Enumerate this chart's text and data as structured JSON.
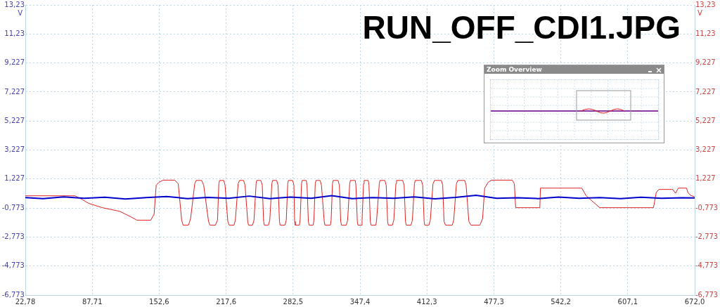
{
  "chart_data": {
    "type": "line",
    "title": "RUN_OFF_CDI1.JPG",
    "ylabel": "V",
    "y2label": "V",
    "annotations": [
      "Zoom Overview"
    ],
    "xlim": [
      22.78,
      672
    ],
    "xticks": [
      {
        "value": 22.78,
        "label": "22,78"
      },
      {
        "value": 87.71,
        "label": "87,71"
      },
      {
        "value": 152.6,
        "label": "152,6"
      },
      {
        "value": 217.6,
        "label": "217,6"
      },
      {
        "value": 282.5,
        "label": "282,5"
      },
      {
        "value": 347.4,
        "label": "347,4"
      },
      {
        "value": 412.3,
        "label": "412,3"
      },
      {
        "value": 477.3,
        "label": "477,3"
      },
      {
        "value": 542.2,
        "label": "542,2"
      },
      {
        "value": 607.1,
        "label": "607,1"
      },
      {
        "value": 672,
        "label": "672,0"
      }
    ],
    "ylim": [
      -6.773,
      13.23
    ],
    "yticks": [
      {
        "value": -6.773,
        "label": "-6,773"
      },
      {
        "value": -4.773,
        "label": "-4,773"
      },
      {
        "value": -2.773,
        "label": "-2,773"
      },
      {
        "value": -0.773,
        "label": "-0,773"
      },
      {
        "value": 1.227,
        "label": "1,227"
      },
      {
        "value": 3.227,
        "label": "3,227"
      },
      {
        "value": 5.227,
        "label": "5,227"
      },
      {
        "value": 7.227,
        "label": "7,227"
      },
      {
        "value": 9.227,
        "label": "9,227"
      },
      {
        "value": 11.23,
        "label": "11,23"
      },
      {
        "value": 13.23,
        "label": "13,23"
      }
    ],
    "y2lim": [
      -6.773,
      13.23
    ],
    "y2ticks": [
      {
        "value": -6.773,
        "label": "-6,773"
      },
      {
        "value": -4.773,
        "label": "-4,773"
      },
      {
        "value": -2.773,
        "label": "-2,773"
      },
      {
        "value": -0.773,
        "label": "-0,773"
      },
      {
        "value": 1.227,
        "label": "1,227"
      },
      {
        "value": 3.227,
        "label": "3,227"
      },
      {
        "value": 5.227,
        "label": "5,227"
      },
      {
        "value": 7.227,
        "label": "7,227"
      },
      {
        "value": 9.227,
        "label": "9,227"
      },
      {
        "value": 11.23,
        "label": "11,23"
      },
      {
        "value": 13.23,
        "label": "13,23"
      }
    ],
    "grid": true,
    "legend": false,
    "marker": "none",
    "line_style": "solid",
    "series": [
      {
        "color": "#0000cc",
        "x": [
          22.8,
          40,
          60,
          80,
          100,
          120,
          140,
          160,
          180,
          200,
          220,
          240,
          260,
          280,
          300,
          320,
          340,
          360,
          380,
          400,
          420,
          440,
          460,
          480,
          500,
          520,
          540,
          560,
          580,
          600,
          620,
          640,
          660,
          672
        ],
        "values": [
          -0.05,
          -0.12,
          0.0,
          -0.1,
          -0.03,
          -0.15,
          -0.05,
          0.02,
          -0.12,
          -0.04,
          -0.1,
          0.05,
          -0.13,
          -0.02,
          -0.1,
          0.08,
          -0.12,
          -0.05,
          -0.1,
          0.0,
          -0.14,
          -0.04,
          0.1,
          -0.1,
          -0.06,
          -0.12,
          -0.02,
          -0.1,
          -0.05,
          -0.13,
          -0.03,
          -0.1,
          -0.06,
          -0.08
        ]
      },
      {
        "color": "#dd2222",
        "axis": "y2",
        "x": [
          22.8,
          70.9,
          77.6,
          84.2,
          97.6,
          114.3,
          125.7,
          131.0,
          144.4,
          147.7,
          149.7,
          152.4,
          156.4,
          167.7,
          171.1,
          174.4,
          175.8,
          181.1,
          183.1,
          187.1,
          188.5,
          193.8,
          195.8,
          200.5,
          201.8,
          207.2,
          209.2,
          210.5,
          211.2,
          215.2,
          216.5,
          219.2,
          220.5,
          225.2,
          226.5,
          229.2,
          230.5,
          234.5,
          235.9,
          238.5,
          239.2,
          243.2,
          244.6,
          246.6,
          247.2,
          251.2,
          252.6,
          253.9,
          254.6,
          258.6,
          259.9,
          261.9,
          262.6,
          266.6,
          267.9,
          269.3,
          269.9,
          274.6,
          275.9,
          277.3,
          278.0,
          282.0,
          283.3,
          284.0,
          284.6,
          288.6,
          289.3,
          290.7,
          291.3,
          295.3,
          296.0,
          297.3,
          298.0,
          302.0,
          302.7,
          304.0,
          304.7,
          308.7,
          310.0,
          312.7,
          313.4,
          318.7,
          319.4,
          320.7,
          321.4,
          326.1,
          327.4,
          328.7,
          329.4,
          334.1,
          335.4,
          337.4,
          338.1,
          342.8,
          343.4,
          344.8,
          345.4,
          348.8,
          349.4,
          350.8,
          351.4,
          355.4,
          356.1,
          357.4,
          358.1,
          362.8,
          363.5,
          366.1,
          366.8,
          371.5,
          372.8,
          374.2,
          374.8,
          378.8,
          380.2,
          382.2,
          382.8,
          388.8,
          390.2,
          391.5,
          392.2,
          396.9,
          398.2,
          400.2,
          400.9,
          406.9,
          408.2,
          409.6,
          410.2,
          414.2,
          415.6,
          418.2,
          419.6,
          426.3,
          427.6,
          428.9,
          430.3,
          436.9,
          438.3,
          440.9,
          442.3,
          449.0,
          450.3,
          453.0,
          455.0,
          463.7,
          466.3,
          468.3,
          471.7,
          475.0,
          495.1,
          497.1,
          498.4,
          521.8,
          522.4,
          562.5,
          566.5,
          570.5,
          575.9,
          579.9,
          632.0,
          634.7,
          637.3,
          650.7,
          653.4,
          656.1,
          664.1,
          665.4,
          668.1,
          672.0
        ],
        "values": [
          0.07,
          0.07,
          -0.17,
          -0.45,
          -0.75,
          -1.0,
          -1.4,
          -1.61,
          -1.61,
          -1.2,
          0.8,
          1.0,
          1.15,
          1.15,
          0.9,
          -1.6,
          -1.95,
          -1.95,
          -1.5,
          0.9,
          1.13,
          1.13,
          0.8,
          -1.7,
          -1.95,
          -1.95,
          -1.6,
          0.9,
          1.13,
          1.13,
          0.8,
          -1.7,
          -1.95,
          -1.95,
          -1.6,
          0.9,
          1.13,
          1.13,
          0.8,
          -1.7,
          -1.95,
          -1.95,
          -1.6,
          0.9,
          1.13,
          1.13,
          0.8,
          -1.7,
          -1.95,
          -1.95,
          -1.6,
          0.9,
          1.13,
          1.13,
          0.8,
          -1.7,
          -1.95,
          -1.95,
          -1.6,
          0.9,
          1.13,
          1.13,
          0.8,
          -1.7,
          -1.95,
          -1.95,
          -1.6,
          0.9,
          1.13,
          1.13,
          0.8,
          -1.7,
          -1.95,
          -1.95,
          -1.6,
          0.9,
          1.13,
          1.13,
          0.8,
          -1.7,
          -1.95,
          -1.95,
          -1.6,
          0.9,
          1.13,
          1.13,
          0.8,
          -1.7,
          -1.95,
          -1.95,
          -1.6,
          0.9,
          1.13,
          1.13,
          0.8,
          -1.7,
          -1.95,
          -1.95,
          -1.6,
          0.9,
          1.13,
          1.13,
          0.8,
          -1.7,
          -1.95,
          -1.95,
          -1.6,
          0.9,
          1.13,
          1.13,
          0.8,
          -1.7,
          -1.95,
          -1.95,
          -1.6,
          0.9,
          1.13,
          1.13,
          0.8,
          -1.7,
          -1.95,
          -1.95,
          -1.6,
          0.9,
          1.13,
          1.13,
          0.8,
          -1.7,
          -1.95,
          -1.95,
          -1.6,
          0.9,
          1.13,
          1.13,
          0.8,
          -1.7,
          -1.95,
          -1.95,
          -1.6,
          0.9,
          1.13,
          1.13,
          0.8,
          -1.7,
          -1.95,
          -1.95,
          -1.5,
          0.6,
          1.0,
          1.15,
          1.15,
          0.9,
          -0.75,
          -0.75,
          0.6,
          0.6,
          0.1,
          -0.17,
          -0.5,
          -0.75,
          -0.75,
          0.3,
          0.51,
          0.51,
          0.25,
          0.6,
          0.6,
          0.3,
          0.1,
          0.0
        ]
      }
    ]
  }
}
